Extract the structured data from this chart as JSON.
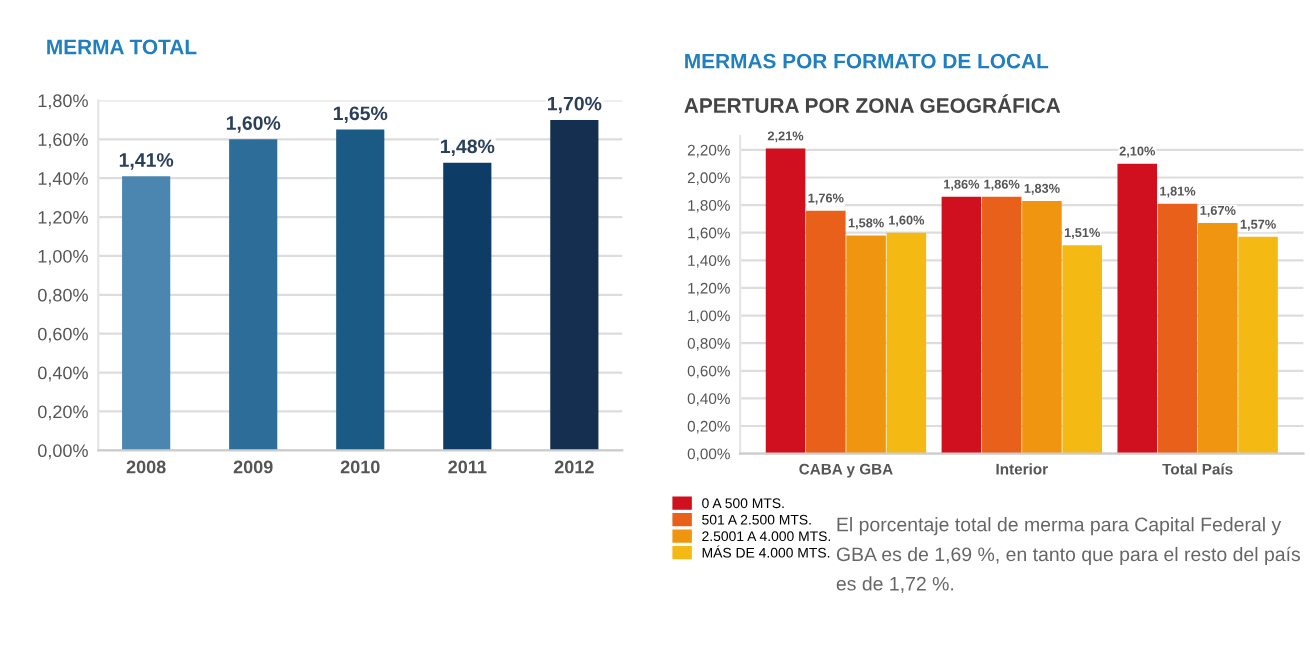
{
  "chart_data": [
    {
      "type": "bar",
      "title": "MERMA TOTAL",
      "categories": [
        "2008",
        "2009",
        "2010",
        "2011",
        "2012"
      ],
      "values": [
        1.41,
        1.6,
        1.65,
        1.48,
        1.7
      ],
      "colors": [
        "#4a86b0",
        "#2c6d9a",
        "#1a5a85",
        "#0d3d66",
        "#142f4f"
      ],
      "value_labels": [
        "1,41%",
        "1,60%",
        "1,65%",
        "1,48%",
        "1,70%"
      ],
      "ylim": [
        0,
        1.8
      ],
      "yticks": [
        {
          "value": 0,
          "label": "0,00%"
        },
        {
          "value": 0.2,
          "label": "0,20%"
        },
        {
          "value": 0.4,
          "label": "0,40%"
        },
        {
          "value": 0.6,
          "label": "0,60%"
        },
        {
          "value": 0.8,
          "label": "0,80%"
        },
        {
          "value": 1.0,
          "label": "1,00%"
        },
        {
          "value": 1.2,
          "label": "1,20%"
        },
        {
          "value": 1.4,
          "label": "1,40%"
        },
        {
          "value": 1.6,
          "label": "1,60%"
        },
        {
          "value": 1.8,
          "label": "1,80%"
        }
      ],
      "grid": "y"
    },
    {
      "type": "bar",
      "title": "MERMAS POR FORMATO DE LOCAL",
      "subtitle": "APERTURA POR ZONA GEOGRÁFICA",
      "categories": [
        "CABA y GBA",
        "Interior",
        "Total País"
      ],
      "series": [
        {
          "name": "0 A 500 MTS.",
          "color": "#d0101e",
          "values": [
            2.21,
            1.86,
            2.1
          ],
          "value_labels": [
            "2,21%",
            "1,86%",
            "2,10%"
          ]
        },
        {
          "name": "501 A 2.500 MTS.",
          "color": "#e8601a",
          "values": [
            1.76,
            1.86,
            1.81
          ],
          "value_labels": [
            "1,76%",
            "1,86%",
            "1,81%"
          ]
        },
        {
          "name": "2.5001 A 4.000 MTS.",
          "color": "#f0950f",
          "values": [
            1.58,
            1.83,
            1.67
          ],
          "value_labels": [
            "1,58%",
            "1,83%",
            "1,67%"
          ]
        },
        {
          "name": "MÁS DE 4.000 MTS.",
          "color": "#f5b914",
          "values": [
            1.6,
            1.51,
            1.57
          ],
          "value_labels": [
            "1,60%",
            "1,51%",
            "1,57%"
          ]
        }
      ],
      "ylim": [
        0,
        2.3
      ],
      "yticks": [
        {
          "value": 0,
          "label": "0,00%"
        },
        {
          "value": 0.2,
          "label": "0,20%"
        },
        {
          "value": 0.4,
          "label": "0,40%"
        },
        {
          "value": 0.6,
          "label": "0,60%"
        },
        {
          "value": 0.8,
          "label": "0,80%"
        },
        {
          "value": 1.0,
          "label": "1,00%"
        },
        {
          "value": 1.2,
          "label": "1,20%"
        },
        {
          "value": 1.4,
          "label": "1,40%"
        },
        {
          "value": 1.6,
          "label": "1,60%"
        },
        {
          "value": 1.8,
          "label": "1,80%"
        },
        {
          "value": 2.0,
          "label": "2,00%"
        },
        {
          "value": 2.2,
          "label": "2,20%"
        }
      ],
      "grid": "y",
      "legend": "bottom left",
      "annotations": [
        "El porcentaje total de merma para Capital Federal y GBA es de 1,69 %, en tanto que para el resto del país es de 1,72 %."
      ]
    }
  ]
}
